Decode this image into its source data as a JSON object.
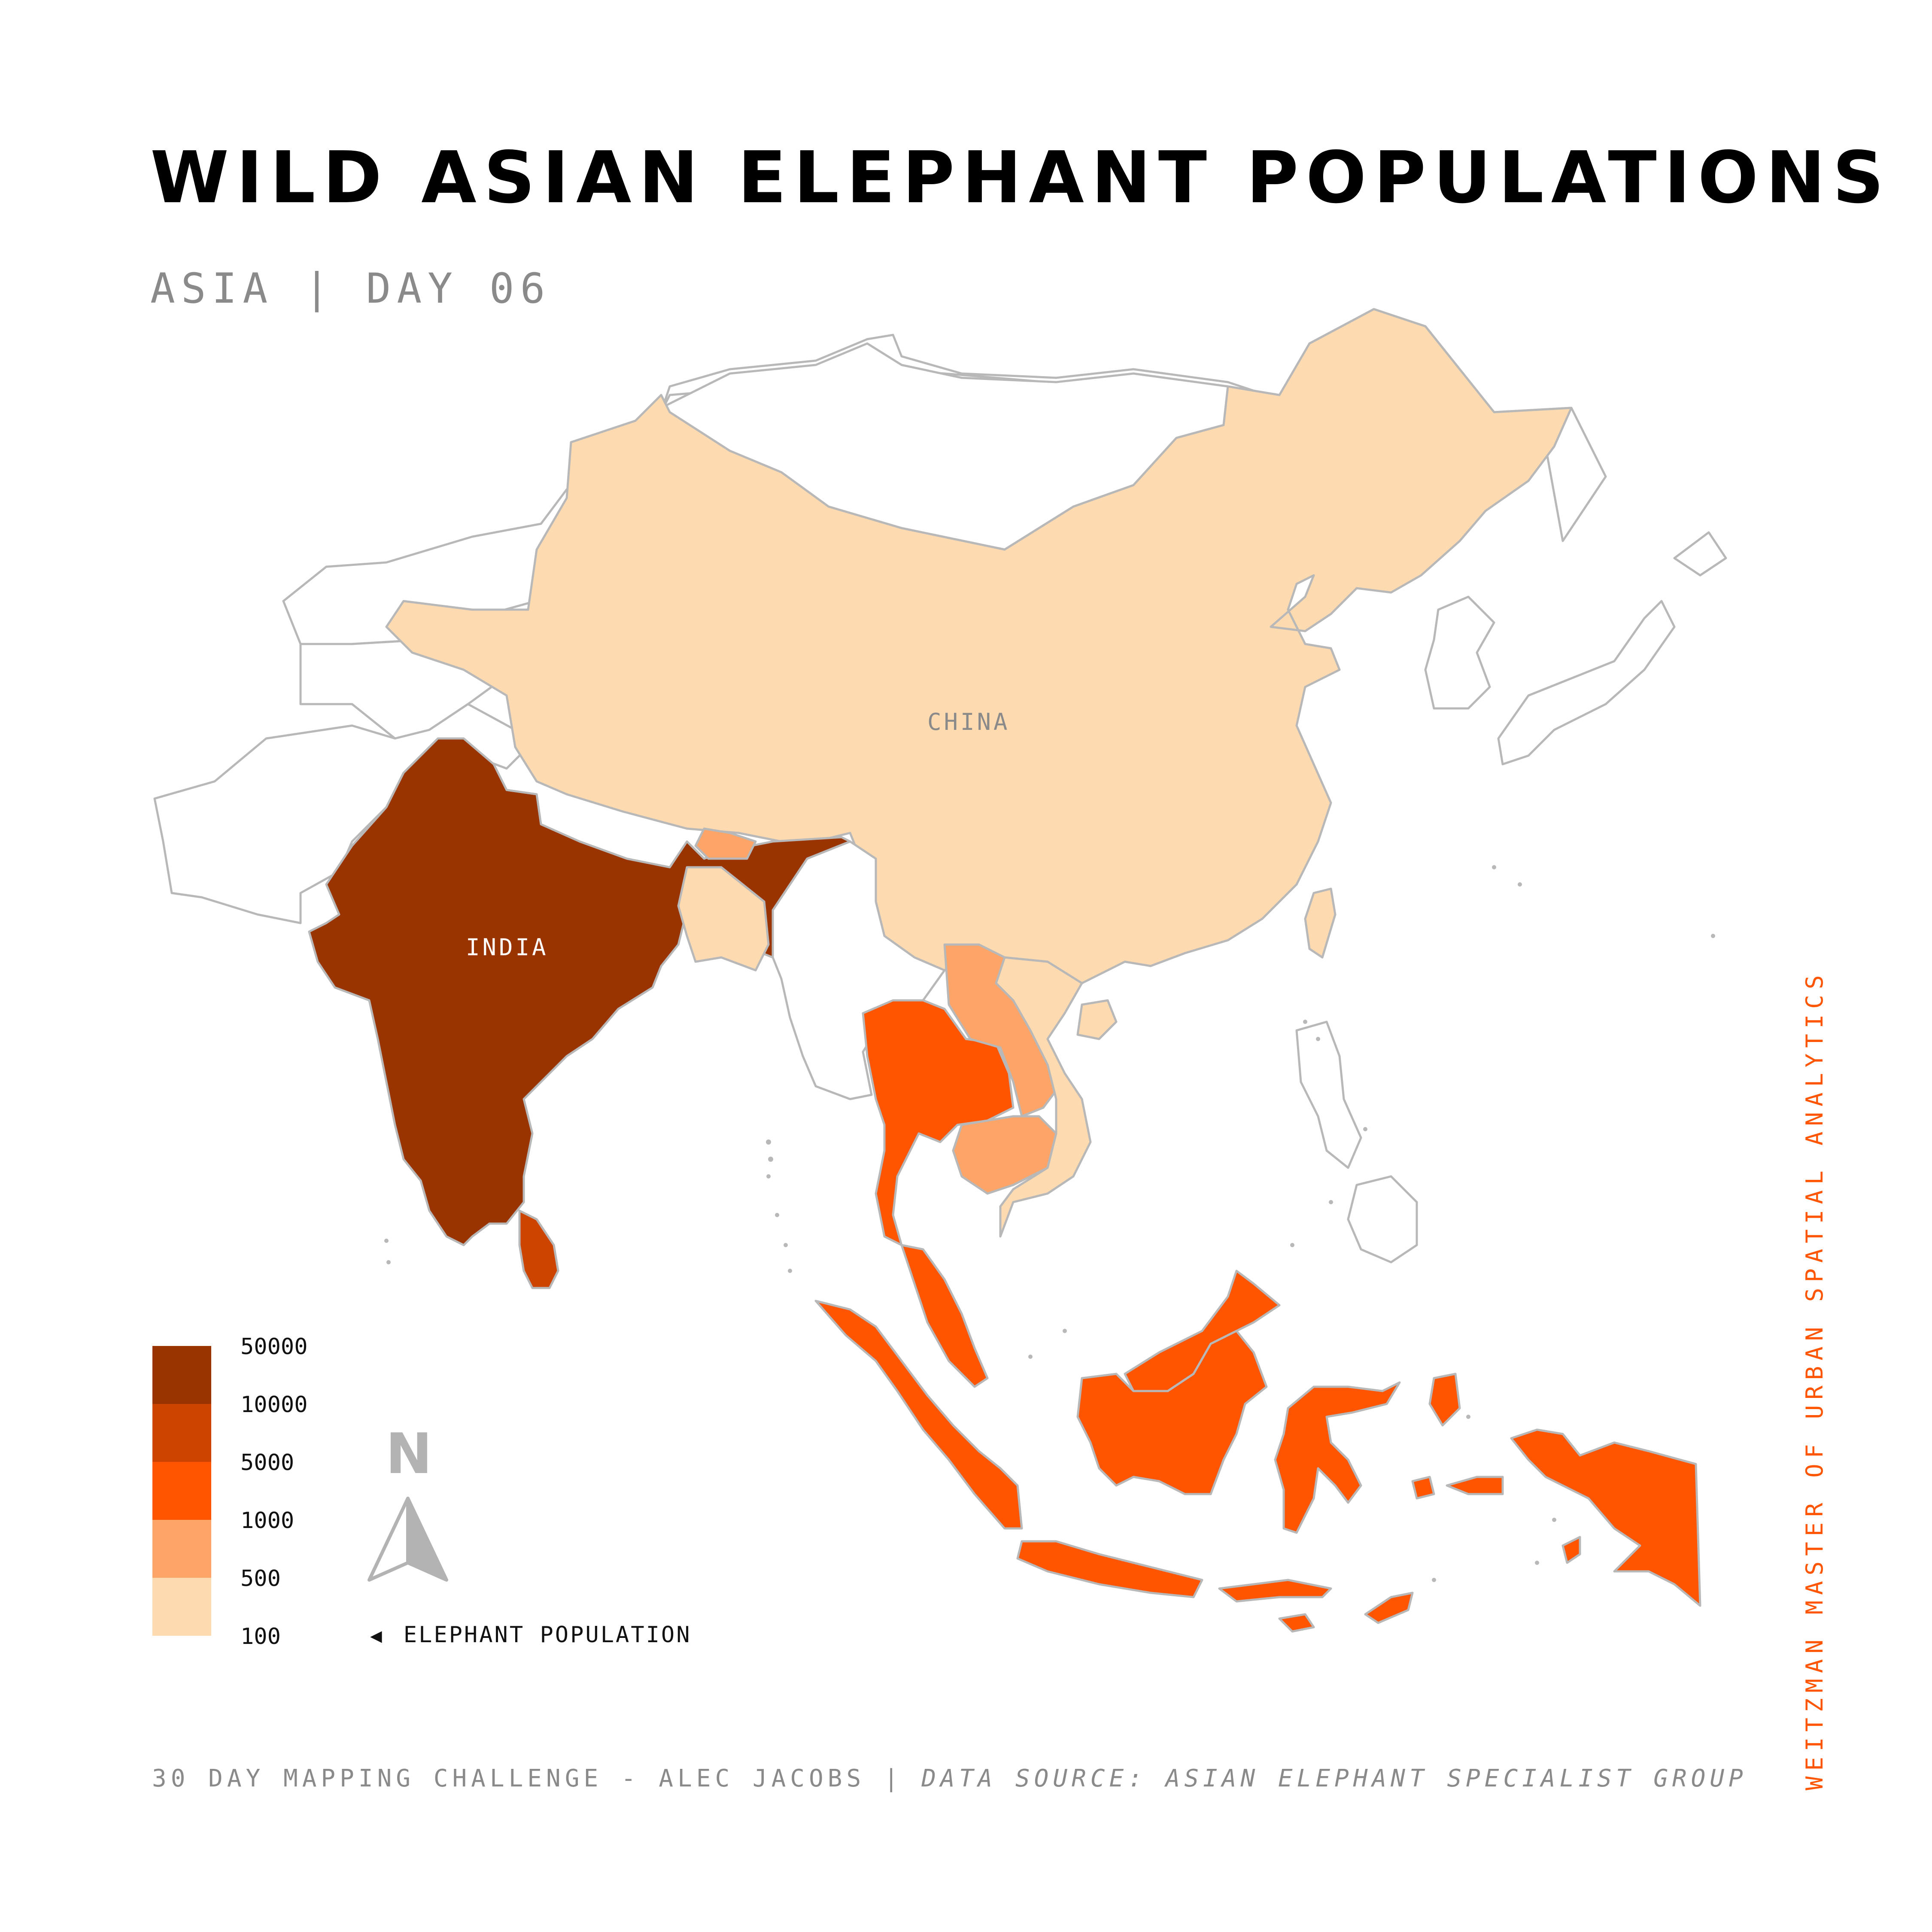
{
  "title": "WILD ASIAN ELEPHANT POPULATIONS",
  "subtitle": "ASIA | DAY 06",
  "footer": {
    "credit": "30 DAY MAPPING CHALLENGE - ALEC JACOBS | ",
    "source": "DATA SOURCE: ASIAN ELEPHANT SPECIALIST GROUP"
  },
  "side_label": "WEITZMAN MASTER OF URBAN SPATIAL ANALYTICS",
  "map_labels": {
    "china": "CHINA",
    "india": "INDIA"
  },
  "legend": {
    "title": "ELEPHANT POPULATION",
    "arrow": "◀",
    "north": "N",
    "classes": [
      {
        "label": "50000",
        "color": "#993300"
      },
      {
        "label": "10000",
        "color": "#cc4400"
      },
      {
        "label": "5000",
        "color": "#ff5500"
      },
      {
        "label": "1000",
        "color": "#fda468"
      },
      {
        "label": "500",
        "color": "#fddab0"
      },
      {
        "label": "100",
        "color": ""
      }
    ]
  },
  "colors": {
    "india": "#993300",
    "bhutan": "#fda468",
    "bangladesh": "#fddab0",
    "china": "#fddab0",
    "myanmar": "#ffffff",
    "thailand": "#ff5500",
    "laos": "#fda468",
    "cambodia": "#fda468",
    "vietnam": "#fddab0",
    "sri_lanka": "#cc4400",
    "malaysia": "#ff5500",
    "indonesia": "#ff5500",
    "border": "#b8b8b8",
    "accent": "#ff5500"
  }
}
